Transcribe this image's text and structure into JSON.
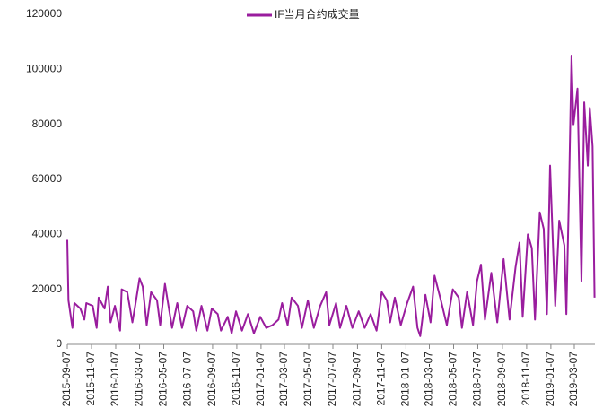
{
  "chart_data": {
    "type": "line",
    "x": [
      "2015-09-07",
      "2015-09-10",
      "2015-09-20",
      "2015-09-25",
      "2015-10-10",
      "2015-10-20",
      "2015-10-25",
      "2015-11-10",
      "2015-11-20",
      "2015-11-25",
      "2015-12-10",
      "2015-12-18",
      "2015-12-25",
      "2016-01-05",
      "2016-01-18",
      "2016-01-22",
      "2016-02-05",
      "2016-02-18",
      "2016-02-25",
      "2016-03-07",
      "2016-03-15",
      "2016-03-25",
      "2016-04-05",
      "2016-04-20",
      "2016-04-28",
      "2016-05-10",
      "2016-05-20",
      "2016-05-28",
      "2016-06-10",
      "2016-06-22",
      "2016-07-05",
      "2016-07-20",
      "2016-07-28",
      "2016-08-10",
      "2016-08-25",
      "2016-09-05",
      "2016-09-20",
      "2016-09-28",
      "2016-10-15",
      "2016-10-25",
      "2016-11-05",
      "2016-11-20",
      "2016-12-05",
      "2016-12-20",
      "2017-01-05",
      "2017-01-20",
      "2017-02-05",
      "2017-02-20",
      "2017-03-01",
      "2017-03-15",
      "2017-03-25",
      "2017-04-10",
      "2017-04-20",
      "2017-05-05",
      "2017-05-20",
      "2017-06-05",
      "2017-06-20",
      "2017-06-28",
      "2017-07-15",
      "2017-07-25",
      "2017-08-10",
      "2017-08-25",
      "2017-09-10",
      "2017-09-25",
      "2017-10-10",
      "2017-10-25",
      "2017-11-07",
      "2017-11-20",
      "2017-11-28",
      "2017-12-10",
      "2017-12-25",
      "2018-01-10",
      "2018-01-25",
      "2018-02-05",
      "2018-02-12",
      "2018-02-25",
      "2018-03-10",
      "2018-03-20",
      "2018-04-05",
      "2018-04-20",
      "2018-05-05",
      "2018-05-20",
      "2018-05-28",
      "2018-06-10",
      "2018-06-25",
      "2018-07-05",
      "2018-07-15",
      "2018-07-25",
      "2018-08-10",
      "2018-08-25",
      "2018-09-10",
      "2018-09-25",
      "2018-10-10",
      "2018-10-20",
      "2018-10-28",
      "2018-11-10",
      "2018-11-20",
      "2018-11-28",
      "2018-12-10",
      "2018-12-20",
      "2018-12-28",
      "2019-01-05",
      "2019-01-10",
      "2019-01-18",
      "2019-01-28",
      "2019-02-10",
      "2019-02-15",
      "2019-02-22",
      "2019-02-28",
      "2019-03-05",
      "2019-03-15",
      "2019-03-25",
      "2019-04-01",
      "2019-04-10",
      "2019-04-15",
      "2019-04-22",
      "2019-04-27"
    ],
    "series": [
      {
        "name": "IF当月合约成交量",
        "color": "#9a1d9e",
        "values": [
          38000,
          16000,
          6000,
          15000,
          13000,
          9000,
          15000,
          14000,
          6000,
          17000,
          13000,
          21000,
          8000,
          14000,
          5000,
          20000,
          19000,
          8000,
          14000,
          24000,
          21000,
          7000,
          19000,
          16000,
          7000,
          22000,
          13000,
          6000,
          15000,
          6000,
          14000,
          12000,
          5000,
          14000,
          5000,
          13000,
          11000,
          5000,
          10000,
          4000,
          12000,
          5000,
          11000,
          4000,
          10000,
          6000,
          7000,
          9000,
          15000,
          7000,
          17000,
          14000,
          6000,
          16000,
          6000,
          14000,
          19000,
          7000,
          15000,
          6000,
          14000,
          6000,
          12000,
          6000,
          11000,
          5000,
          19000,
          16000,
          8000,
          17000,
          7000,
          15000,
          21000,
          6000,
          3000,
          18000,
          8000,
          25000,
          16000,
          7000,
          20000,
          17000,
          6000,
          19000,
          7000,
          23000,
          29000,
          9000,
          26000,
          8000,
          31000,
          9000,
          28000,
          37000,
          10000,
          40000,
          35000,
          9000,
          48000,
          42000,
          11000,
          65000,
          45000,
          14000,
          45000,
          36000,
          11000,
          58000,
          105000,
          80000,
          93000,
          23000,
          88000,
          65000,
          86000,
          72000,
          17000
        ]
      }
    ],
    "xlim": [
      "2015-09-07",
      "2019-04-28"
    ],
    "xticks": [
      "2015-09-07",
      "2015-11-07",
      "2016-01-07",
      "2016-03-07",
      "2016-05-07",
      "2016-07-07",
      "2016-09-07",
      "2016-11-07",
      "2017-01-07",
      "2017-03-07",
      "2017-05-07",
      "2017-07-07",
      "2017-09-07",
      "2017-11-07",
      "2018-01-07",
      "2018-03-07",
      "2018-05-07",
      "2018-07-07",
      "2018-09-07",
      "2018-11-07",
      "2019-01-07",
      "2019-03-07"
    ],
    "ylim": [
      0,
      120000
    ],
    "yticks": [
      0,
      20000,
      40000,
      60000,
      80000,
      100000,
      120000
    ]
  }
}
